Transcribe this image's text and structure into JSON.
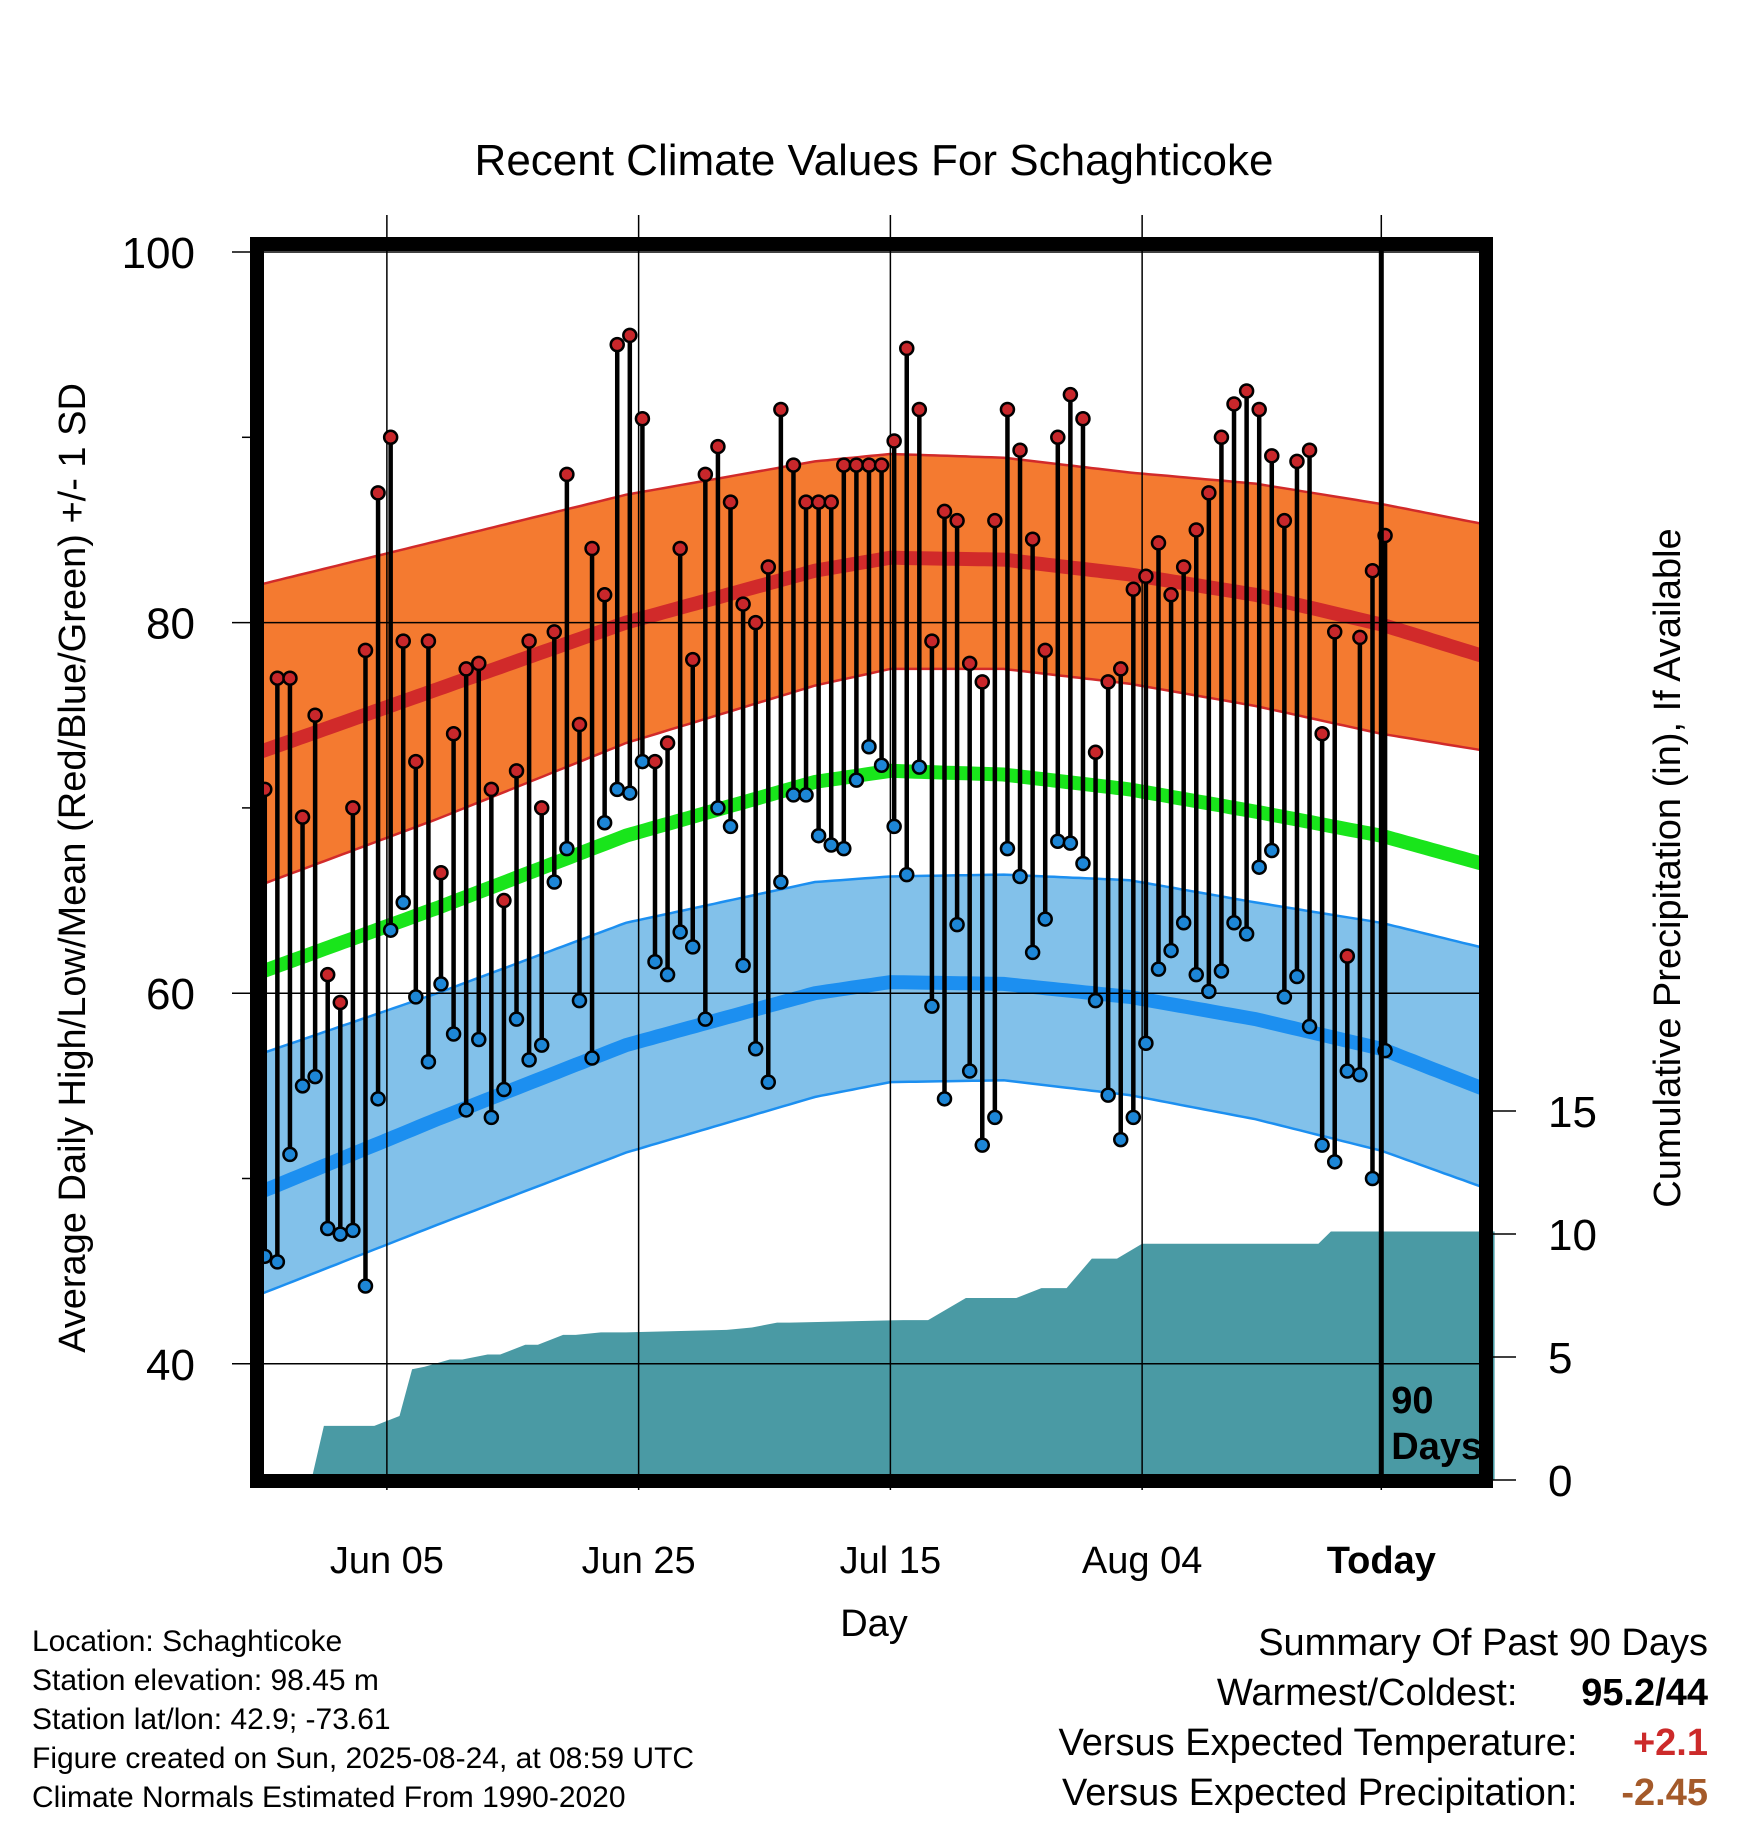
{
  "chart_data": {
    "type": "line",
    "title": "Recent Climate Values For Schaghticoke",
    "xlabel": "Day",
    "ylabel": "Average Daily High/Low/Mean (Red/Blue/Green) +/- 1 SD",
    "y2label": "Cumulative Precipitation (in), If Available",
    "ylim": [
      34.5,
      100
    ],
    "y2lim": [
      0,
      20
    ],
    "x_range_days": [
      -89,
      8
    ],
    "x_ticks": [
      {
        "day": -79,
        "label": "Jun 05"
      },
      {
        "day": -59,
        "label": "Jun 25"
      },
      {
        "day": -39,
        "label": "Jul 15"
      },
      {
        "day": -19,
        "label": "Aug 04"
      },
      {
        "day": 0,
        "label": "Today"
      }
    ],
    "y_ticks": [
      "40",
      "60",
      "80",
      "100"
    ],
    "y2_ticks": [
      "0",
      "5",
      "10",
      "15"
    ],
    "today_label": "90 Days",
    "colors": {
      "high": "#d12a2a",
      "high_band": "#f47a30",
      "low": "#1c8ff0",
      "low_band": "#82c1ea",
      "mean": "#19e51b",
      "precip": "#4a9aa4",
      "marker_high": "#c8272b",
      "marker_low": "#1d86d6"
    },
    "normals": {
      "days": [
        -90,
        -75,
        -60,
        -45,
        -39,
        -30,
        -20,
        -10,
        0,
        9
      ],
      "high": [
        72.8,
        76.4,
        80.0,
        82.8,
        83.5,
        83.4,
        82.6,
        81.5,
        79.9,
        78.0
      ],
      "high_upper": [
        81.9,
        84.4,
        86.9,
        88.7,
        89.1,
        88.9,
        88.1,
        87.5,
        86.4,
        85.2
      ],
      "high_lower": [
        65.6,
        69.4,
        73.5,
        76.6,
        77.5,
        77.5,
        76.7,
        75.5,
        74.0,
        73.0
      ],
      "mean": [
        60.9,
        64.6,
        68.5,
        71.4,
        72.0,
        71.8,
        71.0,
        69.8,
        68.5,
        66.8
      ],
      "low": [
        49.0,
        53.2,
        57.2,
        60.0,
        60.6,
        60.5,
        59.8,
        58.6,
        57.0,
        54.6
      ],
      "low_upper": [
        56.5,
        60.0,
        63.8,
        66.0,
        66.3,
        66.4,
        66.1,
        64.9,
        63.8,
        62.3
      ],
      "low_lower": [
        43.5,
        47.5,
        51.4,
        54.4,
        55.2,
        55.3,
        54.5,
        53.2,
        51.5,
        49.3
      ]
    },
    "daily": {
      "high": [
        71,
        77,
        77,
        69.5,
        75,
        61,
        59.5,
        70,
        78.5,
        87,
        90,
        79,
        72.5,
        79,
        66.5,
        74,
        77.5,
        77.8,
        71,
        65,
        72,
        79,
        70,
        79.5,
        88,
        74.5,
        84,
        81.5,
        95,
        95.5,
        91,
        72.5,
        73.5,
        84,
        78,
        88,
        89.5,
        86.5,
        81,
        80,
        83,
        91.5,
        88.5,
        86.5,
        86.5,
        86.5,
        88.5,
        88.5,
        88.5,
        88.5,
        89.8,
        94.8,
        91.5,
        79,
        86,
        85.5,
        77.8,
        76.8,
        85.5,
        91.5,
        89.3,
        84.5,
        78.5,
        90,
        92.3,
        91,
        73,
        76.8,
        77.5,
        81.8,
        82.5,
        84.3,
        81.5,
        83,
        85,
        87,
        90,
        91.8,
        92.5,
        91.5,
        89,
        85.5,
        88.7,
        89.3,
        74,
        79.5,
        62,
        79.2,
        82.8,
        84.7
      ],
      "low": [
        45.8,
        45.5,
        51.3,
        55,
        55.5,
        47.3,
        47,
        47.2,
        44.2,
        54.3,
        63.4,
        64.9,
        59.8,
        56.3,
        60.5,
        57.8,
        53.7,
        57.5,
        53.3,
        54.8,
        58.6,
        56.4,
        57.2,
        66,
        67.8,
        59.6,
        56.5,
        69.2,
        71,
        70.8,
        72.5,
        61.7,
        61,
        63.3,
        62.5,
        58.6,
        70,
        69,
        61.5,
        57,
        55.2,
        66,
        70.7,
        70.7,
        68.5,
        68,
        67.8,
        71.5,
        73.3,
        72.3,
        69,
        66.4,
        72.2,
        59.3,
        54.3,
        63.7,
        55.8,
        51.8,
        53.3,
        67.8,
        66.3,
        62.2,
        64,
        68.2,
        68.1,
        67,
        59.6,
        54.5,
        52.1,
        53.3,
        57.3,
        61.3,
        62.3,
        63.8,
        61,
        60.1,
        61.2,
        63.8,
        63.2,
        66.8,
        67.7,
        59.8,
        60.9,
        58.2,
        51.8,
        50.9,
        55.8,
        55.6,
        50,
        56.9
      ]
    },
    "precip": {
      "days": [
        -89,
        -85,
        -84,
        -80,
        -78,
        -77,
        -76,
        -74,
        -73,
        -71,
        -70,
        -68,
        -67,
        -65,
        -64,
        -62,
        -60,
        -52,
        -50,
        -48,
        -47,
        -38,
        -36,
        -33,
        -29,
        -27,
        -25,
        -23,
        -21,
        -19,
        -18,
        -5,
        -4,
        9
      ],
      "values": [
        0,
        0,
        2.2,
        2.2,
        2.6,
        4.5,
        4.6,
        4.9,
        4.9,
        5.1,
        5.1,
        5.5,
        5.5,
        5.9,
        5.9,
        6.0,
        6.0,
        6.1,
        6.2,
        6.4,
        6.4,
        6.5,
        6.5,
        7.4,
        7.4,
        7.8,
        7.8,
        9.0,
        9.0,
        9.6,
        9.6,
        9.6,
        10.1,
        10.1
      ]
    }
  },
  "info": {
    "location": "Location: Schaghticoke",
    "elevation": "Station elevation: 98.45 m",
    "latlon": "Station lat/lon: 42.9; -73.61",
    "created": "Figure created on Sun, 2025-08-24, at 08:59 UTC",
    "normals": "Climate Normals Estimated From 1990-2020"
  },
  "summary": {
    "title": "Summary Of Past 90 Days",
    "warm_cold_label": "Warmest/Coldest:",
    "warm_cold_value": "95.2/44",
    "temp_label": "Versus Expected Temperature:",
    "temp_value": "+2.1",
    "temp_color": "#cc2a2a",
    "precip_label": "Versus Expected Precipitation:",
    "precip_value": "-2.45",
    "precip_color": "#a45a2a"
  }
}
